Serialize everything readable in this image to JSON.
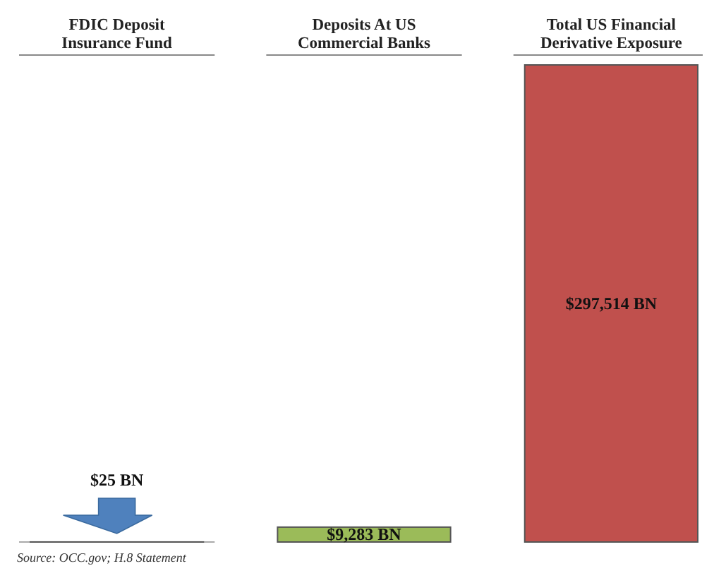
{
  "chart_data": {
    "type": "bar",
    "categories": [
      "FDIC Deposit\nInsurance Fund",
      "Deposits At US\nCommercial Banks",
      "Total US Financial\nDerivative Exposure"
    ],
    "values": [
      25,
      9283,
      297514
    ],
    "colors": [
      "#4f81bd",
      "#9bbb59",
      "#c0504d"
    ],
    "value_labels": [
      "$25 BN",
      "$9,283  BN",
      "$297,514 BN"
    ],
    "annotations": [
      "Source: OCC.gov; H.8 Statement"
    ]
  }
}
